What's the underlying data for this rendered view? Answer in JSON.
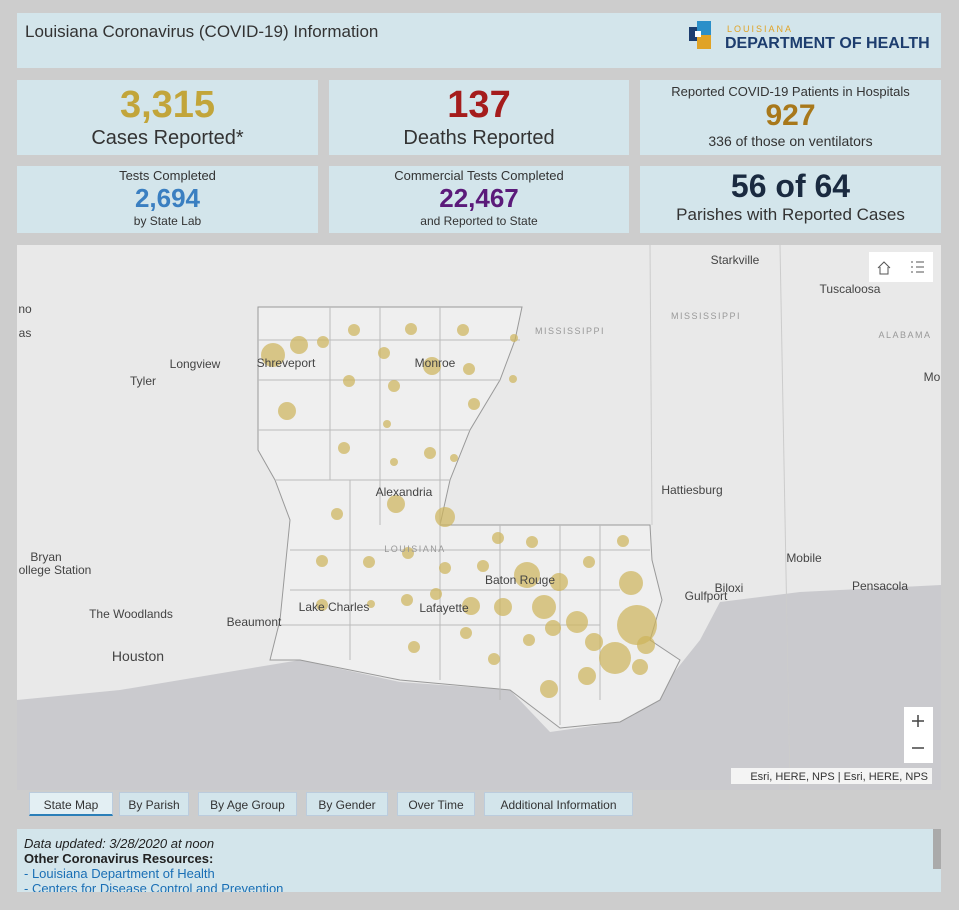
{
  "header": {
    "title": "Louisiana Coronavirus (COVID-19) Information",
    "logo_top": "LOUISIANA",
    "logo_main": "DEPARTMENT OF HEALTH"
  },
  "stats": {
    "cases": {
      "value": "3,315",
      "label": "Cases Reported*"
    },
    "deaths": {
      "value": "137",
      "label": "Deaths Reported"
    },
    "hospital": {
      "caption": "Reported COVID-19 Patients in Hospitals",
      "value": "927",
      "note": "336 of those on ventilators"
    },
    "tests": {
      "caption": "Tests Completed",
      "value": "2,694",
      "note": "by State Lab"
    },
    "commercial": {
      "caption": "Commercial Tests Completed",
      "value": "22,467",
      "note": "and Reported to State"
    },
    "parishes": {
      "value": "56 of 64",
      "label": "Parishes with Reported Cases"
    }
  },
  "map": {
    "labels": [
      "Starkville",
      "Tuscaloosa",
      "MISSISSIPPI",
      "MISSISSIPPI",
      "ALABAMA",
      "Mo",
      "no",
      "as",
      "Longview",
      "Tyler",
      "Shreveport",
      "Monroe",
      "Alexandria",
      "Hattiesburg",
      "LOUISIANA",
      "Bryan",
      "ollege Station",
      "Baton Rouge",
      "Mobile",
      "Biloxi",
      "Gulfport",
      "Pensacola",
      "The Woodlands",
      "Lake Charles",
      "Lafayette",
      "Beaumont",
      "Houston"
    ],
    "attribution": "Esri, HERE, NPS | Esri, HERE, NPS"
  },
  "tabs": [
    "State Map",
    "By Parish",
    "By Age Group",
    "By Gender",
    "Over Time",
    "Additional Information"
  ],
  "footer": {
    "updated": "Data updated: 3/28/2020 at noon",
    "resources": "Other Coronavirus Resources:",
    "links": [
      "- Louisiana Department of Health",
      "- Centers for Disease Control and Prevention"
    ]
  }
}
